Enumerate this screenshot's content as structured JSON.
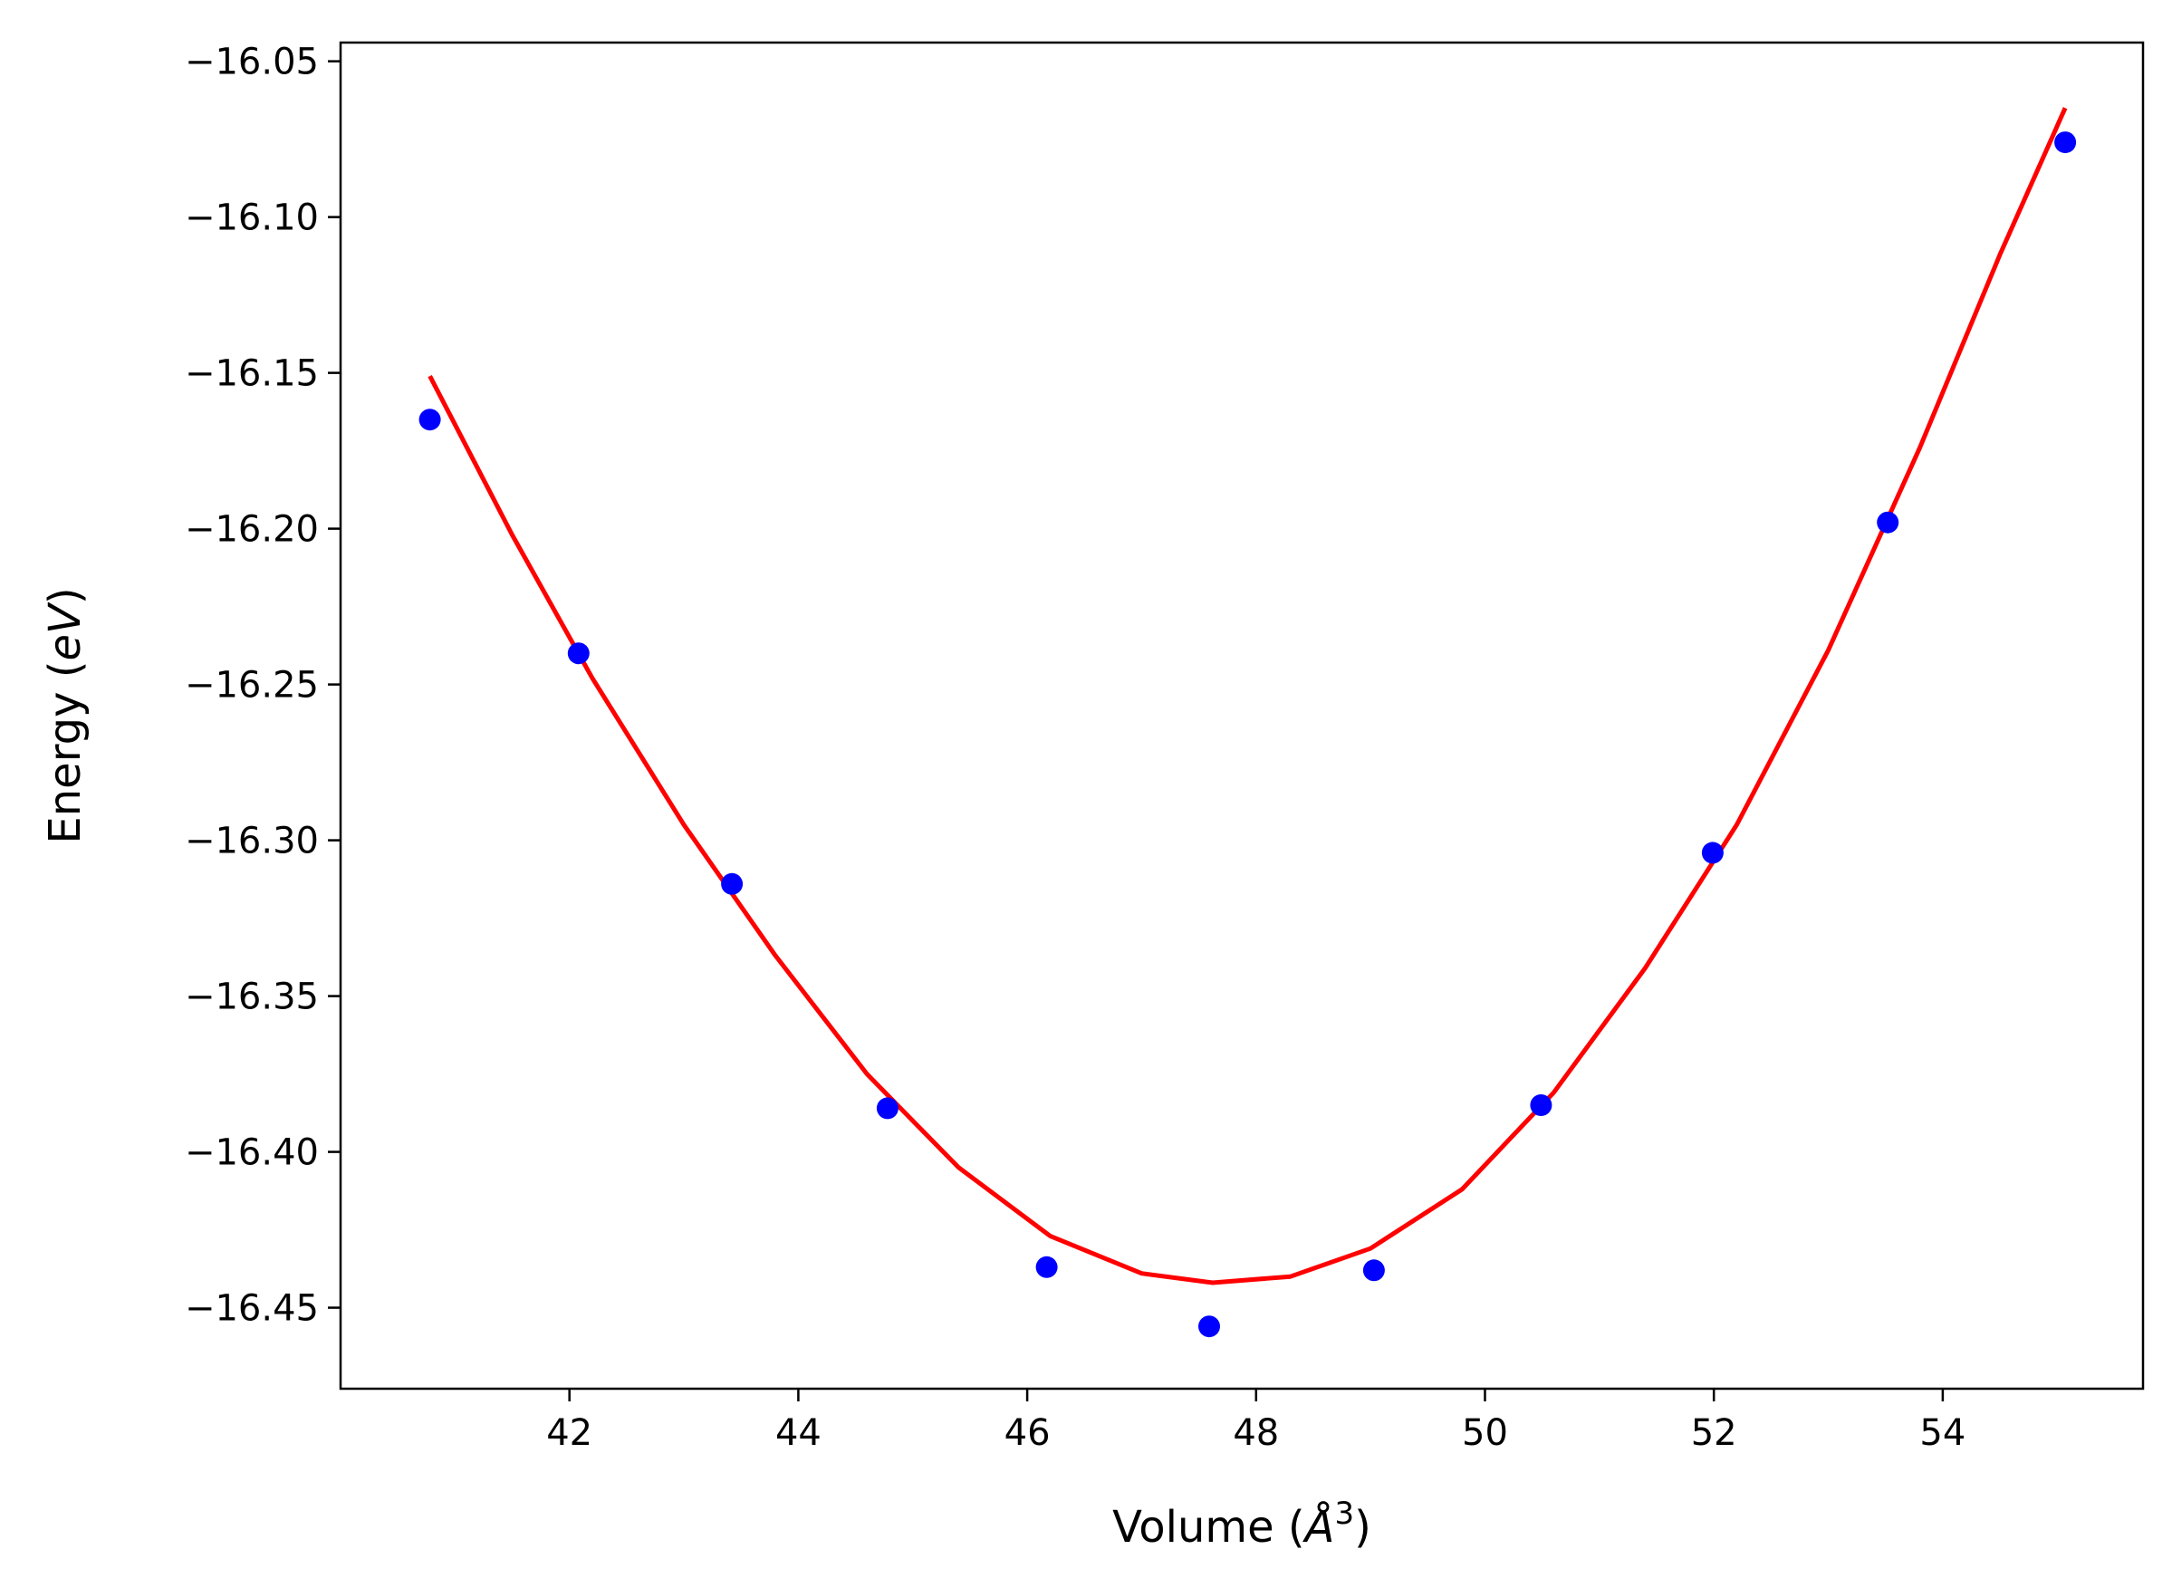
{
  "chart_data": {
    "type": "scatter",
    "title": "",
    "xlabel_prefix": "Volume (",
    "xlabel_unit": "Å",
    "xlabel_exp": "3",
    "xlabel_suffix": ")",
    "ylabel_prefix": "Energy (",
    "ylabel_unit": "eV",
    "ylabel_suffix": ")",
    "xlim": [
      40.0,
      55.75
    ],
    "ylim": [
      -16.476,
      -16.044
    ],
    "xticks": [
      42,
      44,
      46,
      48,
      50,
      52,
      54
    ],
    "xtick_labels": [
      "42",
      "44",
      "46",
      "48",
      "50",
      "52",
      "54"
    ],
    "yticks": [
      -16.05,
      -16.1,
      -16.15,
      -16.2,
      -16.25,
      -16.3,
      -16.35,
      -16.4,
      -16.45
    ],
    "ytick_labels": [
      "−16.05",
      "−16.10",
      "−16.15",
      "−16.20",
      "−16.25",
      "−16.30",
      "−16.35",
      "−16.40",
      "−16.45"
    ],
    "grid": false,
    "series": [
      {
        "kind": "points",
        "color": "#0000ff",
        "x": [
          40.78,
          42.08,
          43.42,
          44.78,
          46.17,
          47.59,
          49.03,
          50.49,
          51.99,
          53.52,
          55.07
        ],
        "y": [
          -16.165,
          -16.24,
          -16.314,
          -16.386,
          -16.437,
          -16.456,
          -16.438,
          -16.385,
          -16.304,
          -16.198,
          -16.076
        ]
      },
      {
        "kind": "fit-line",
        "color": "#ff0000",
        "x": [
          40.78,
          41.5,
          42.2,
          43.0,
          43.8,
          44.6,
          45.4,
          46.2,
          47.0,
          47.62,
          48.3,
          49.0,
          49.8,
          50.6,
          51.4,
          52.2,
          53.0,
          53.8,
          54.5,
          55.07
        ],
        "y": [
          -16.151,
          -16.202,
          -16.248,
          -16.295,
          -16.337,
          -16.375,
          -16.405,
          -16.427,
          -16.439,
          -16.442,
          -16.44,
          -16.431,
          -16.412,
          -16.381,
          -16.341,
          -16.295,
          -16.239,
          -16.174,
          -16.112,
          -16.065
        ]
      }
    ]
  }
}
